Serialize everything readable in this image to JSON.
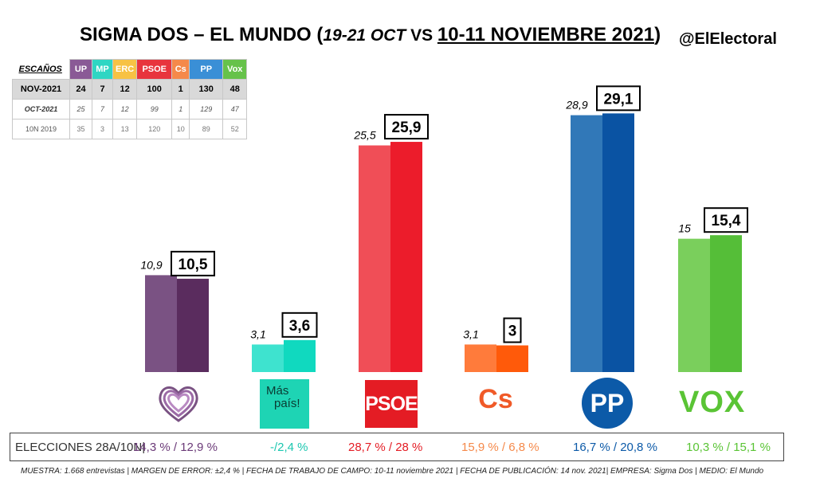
{
  "header": {
    "title_main": "SIGMA DOS – EL MUNDO (",
    "title_dates_old": "19-21 OCT",
    "title_vs": " VS ",
    "title_dates_new": "10-11 NOVIEMBRE 2021",
    "title_close": ")",
    "handle": "@ElElectoral"
  },
  "seats_table": {
    "corner": "ESCAÑOS",
    "parties": [
      {
        "name": "UP",
        "color": "#8a5a96"
      },
      {
        "name": "MP",
        "color": "#2fd6c3"
      },
      {
        "name": "ERC",
        "color": "#f7c244"
      },
      {
        "name": "PSOE",
        "color": "#e8343d"
      },
      {
        "name": "Cs",
        "color": "#f5894a"
      },
      {
        "name": "PP",
        "color": "#3a8fd6"
      },
      {
        "name": "Vox",
        "color": "#66c24a"
      }
    ],
    "rows": [
      {
        "label": "NOV-2021",
        "values": [
          "24",
          "7",
          "12",
          "100",
          "1",
          "130",
          "48"
        ]
      },
      {
        "label": "OCT-2021",
        "values": [
          "25",
          "7",
          "12",
          "99",
          "1",
          "129",
          "47"
        ]
      },
      {
        "label": "10N 2019",
        "values": [
          "35",
          "3",
          "13",
          "120",
          "10",
          "89",
          "52"
        ]
      }
    ]
  },
  "chart_data": {
    "type": "bar",
    "categories": [
      "UP",
      "Más País",
      "PSOE",
      "Cs",
      "PP",
      "Vox"
    ],
    "series": [
      {
        "values": [
          10.9,
          3.1,
          25.5,
          3.1,
          28.9,
          15
        ],
        "labels": [
          "10,9",
          "3,1",
          "25,5",
          "3,1",
          "28,9",
          "15"
        ]
      },
      {
        "values": [
          10.5,
          3.6,
          25.9,
          3,
          29.1,
          15.4
        ],
        "labels": [
          "10,5",
          "3,6",
          "25,9",
          "3",
          "29,1",
          "15,4"
        ]
      }
    ],
    "colors_old": [
      "#7a5283",
      "#3ee3cf",
      "#f04e57",
      "#ff7b3b",
      "#3178b8",
      "#7acf5c"
    ],
    "colors_new": [
      "#5a2c5e",
      "#10d9bf",
      "#ec1c2b",
      "#ff5a0a",
      "#0a53a3",
      "#55be38"
    ],
    "ylim": [
      0,
      32
    ]
  },
  "logos": {
    "mp_line1": "Más",
    "mp_line2": "país!",
    "psoe": "PSOE",
    "cs": "Cs",
    "pp": "PP",
    "vox": "VOX"
  },
  "previous_elections": {
    "label": "ELECCIONES 28A/10N|",
    "values": [
      "14,3 % / 12,9 %",
      "-/2,4 %",
      "28,7  % / 28 %",
      "15,9 % / 6,8 %",
      "16,7 % / 20,8 %",
      "10,3 % / 15,1 %"
    ],
    "colors": [
      "#6b3a78",
      "#1cc7b0",
      "#e41c24",
      "#f5894a",
      "#0c5aa8",
      "#5ac435"
    ]
  },
  "footer": "MUESTRA: 1.668 entrevistas | MARGEN DE ERROR: ±2,4 % | FECHA DE TRABAJO DE CAMPO: 10-11 noviembre 2021  | FECHA DE PUBLICACIÓN: 14 nov. 2021| EMPRESA: Sigma Dos | MEDIO: El Mundo"
}
